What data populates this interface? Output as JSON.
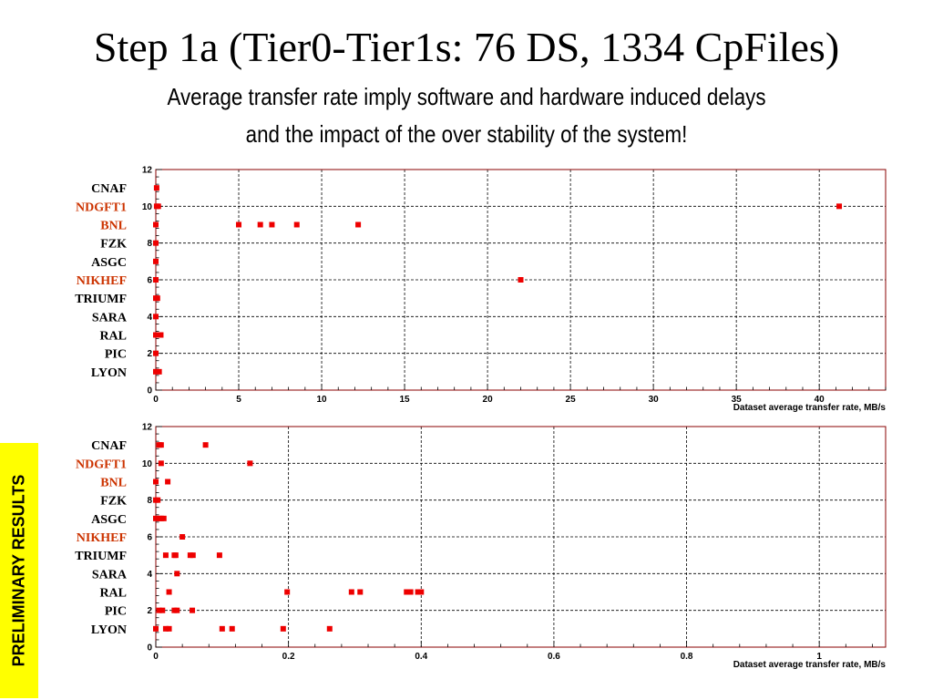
{
  "title": "Step 1a (Tier0-Tier1s: 76 DS, 1334 CpFiles)",
  "subtitle_line1": "Average transfer rate imply software and hardware induced delays",
  "subtitle_line2": "and the impact of the over stability of the system!",
  "badge": "PRELIMINARY RESULTS",
  "colors": {
    "marker": "#ee0000",
    "frame": "#880000",
    "site_highlight": "#cc3300",
    "site_normal": "#000000",
    "badge": "#ffff00"
  },
  "chart_data": [
    {
      "type": "scatter",
      "title": "",
      "xlabel": "Dataset average transfer rate, MB/s",
      "ylabel": "",
      "xlim": [
        0,
        44
      ],
      "ylim": [
        0,
        12
      ],
      "grid": true,
      "x_ticks": [
        0,
        5,
        10,
        15,
        20,
        25,
        30,
        35,
        40
      ],
      "x_tick_labels": [
        "0",
        "5",
        "10",
        "15",
        "20",
        "25",
        "30",
        "35",
        "40"
      ],
      "y_ticks": [
        0,
        2,
        4,
        6,
        8,
        10,
        12
      ],
      "y_tick_labels": [
        "0",
        "2",
        "4",
        "6",
        "8",
        "10",
        "12"
      ],
      "sites": [
        {
          "name": "CNAF",
          "y": 11,
          "highlight": false
        },
        {
          "name": "NDGFT1",
          "y": 10,
          "highlight": true
        },
        {
          "name": "BNL",
          "y": 9,
          "highlight": true
        },
        {
          "name": "FZK",
          "y": 8,
          "highlight": false
        },
        {
          "name": "ASGC",
          "y": 7,
          "highlight": false
        },
        {
          "name": "NIKHEF",
          "y": 6,
          "highlight": true
        },
        {
          "name": "TRIUMF",
          "y": 5,
          "highlight": false
        },
        {
          "name": "SARA",
          "y": 4,
          "highlight": false
        },
        {
          "name": "RAL",
          "y": 3,
          "highlight": false
        },
        {
          "name": "PIC",
          "y": 2,
          "highlight": false
        },
        {
          "name": "LYON",
          "y": 1,
          "highlight": false
        }
      ],
      "points": [
        {
          "x": 0.05,
          "y": 11
        },
        {
          "x": 0.05,
          "y": 10
        },
        {
          "x": 0.15,
          "y": 10
        },
        {
          "x": 41.2,
          "y": 10
        },
        {
          "x": 0.0,
          "y": 9
        },
        {
          "x": 5.0,
          "y": 9
        },
        {
          "x": 6.3,
          "y": 9
        },
        {
          "x": 7.0,
          "y": 9
        },
        {
          "x": 8.5,
          "y": 9
        },
        {
          "x": 12.2,
          "y": 9
        },
        {
          "x": 0.0,
          "y": 8
        },
        {
          "x": 0.0,
          "y": 7
        },
        {
          "x": 0.0,
          "y": 6
        },
        {
          "x": 22.0,
          "y": 6
        },
        {
          "x": 0.0,
          "y": 5
        },
        {
          "x": 0.1,
          "y": 5
        },
        {
          "x": 0.0,
          "y": 4
        },
        {
          "x": 0.0,
          "y": 3
        },
        {
          "x": 0.15,
          "y": 3
        },
        {
          "x": 0.3,
          "y": 3
        },
        {
          "x": 0.0,
          "y": 2
        },
        {
          "x": 0.0,
          "y": 1
        },
        {
          "x": 0.2,
          "y": 1
        }
      ]
    },
    {
      "type": "scatter",
      "title": "",
      "xlabel": "Dataset average transfer rate, MB/s",
      "ylabel": "",
      "xlim": [
        0,
        1.1
      ],
      "ylim": [
        0,
        12
      ],
      "grid": true,
      "x_ticks": [
        0,
        0.2,
        0.4,
        0.6,
        0.8,
        1.0
      ],
      "x_tick_labels": [
        "0",
        "0.2",
        "0.4",
        "0.6",
        "0.8",
        "1"
      ],
      "y_ticks": [
        0,
        2,
        4,
        6,
        8,
        10,
        12
      ],
      "y_tick_labels": [
        "0",
        "2",
        "4",
        "6",
        "8",
        "10",
        "12"
      ],
      "sites": [
        {
          "name": "CNAF",
          "y": 11,
          "highlight": false
        },
        {
          "name": "NDGFT1",
          "y": 10,
          "highlight": true
        },
        {
          "name": "BNL",
          "y": 9,
          "highlight": true
        },
        {
          "name": "FZK",
          "y": 8,
          "highlight": false
        },
        {
          "name": "ASGC",
          "y": 7,
          "highlight": false
        },
        {
          "name": "NIKHEF",
          "y": 6,
          "highlight": true
        },
        {
          "name": "TRIUMF",
          "y": 5,
          "highlight": false
        },
        {
          "name": "SARA",
          "y": 4,
          "highlight": false
        },
        {
          "name": "RAL",
          "y": 3,
          "highlight": false
        },
        {
          "name": "PIC",
          "y": 2,
          "highlight": false
        },
        {
          "name": "LYON",
          "y": 1,
          "highlight": false
        }
      ],
      "points": [
        {
          "x": 0.005,
          "y": 11
        },
        {
          "x": 0.008,
          "y": 11
        },
        {
          "x": 0.075,
          "y": 11
        },
        {
          "x": 0.008,
          "y": 10
        },
        {
          "x": 0.142,
          "y": 10
        },
        {
          "x": 0.0,
          "y": 9
        },
        {
          "x": 0.018,
          "y": 9
        },
        {
          "x": 0.0,
          "y": 8
        },
        {
          "x": 0.003,
          "y": 8
        },
        {
          "x": 0.0,
          "y": 7
        },
        {
          "x": 0.005,
          "y": 7
        },
        {
          "x": 0.008,
          "y": 7
        },
        {
          "x": 0.012,
          "y": 7
        },
        {
          "x": 0.04,
          "y": 6
        },
        {
          "x": 0.015,
          "y": 5
        },
        {
          "x": 0.028,
          "y": 5
        },
        {
          "x": 0.03,
          "y": 5
        },
        {
          "x": 0.052,
          "y": 5
        },
        {
          "x": 0.056,
          "y": 5
        },
        {
          "x": 0.096,
          "y": 5
        },
        {
          "x": 0.032,
          "y": 4
        },
        {
          "x": 0.02,
          "y": 3
        },
        {
          "x": 0.198,
          "y": 3
        },
        {
          "x": 0.295,
          "y": 3
        },
        {
          "x": 0.308,
          "y": 3
        },
        {
          "x": 0.378,
          "y": 3
        },
        {
          "x": 0.384,
          "y": 3
        },
        {
          "x": 0.395,
          "y": 3
        },
        {
          "x": 0.4,
          "y": 3
        },
        {
          "x": 0.005,
          "y": 2
        },
        {
          "x": 0.01,
          "y": 2
        },
        {
          "x": 0.028,
          "y": 2
        },
        {
          "x": 0.032,
          "y": 2
        },
        {
          "x": 0.055,
          "y": 2
        },
        {
          "x": 0.0,
          "y": 1
        },
        {
          "x": 0.015,
          "y": 1
        },
        {
          "x": 0.02,
          "y": 1
        },
        {
          "x": 0.1,
          "y": 1
        },
        {
          "x": 0.115,
          "y": 1
        },
        {
          "x": 0.192,
          "y": 1
        },
        {
          "x": 0.262,
          "y": 1
        }
      ]
    }
  ]
}
